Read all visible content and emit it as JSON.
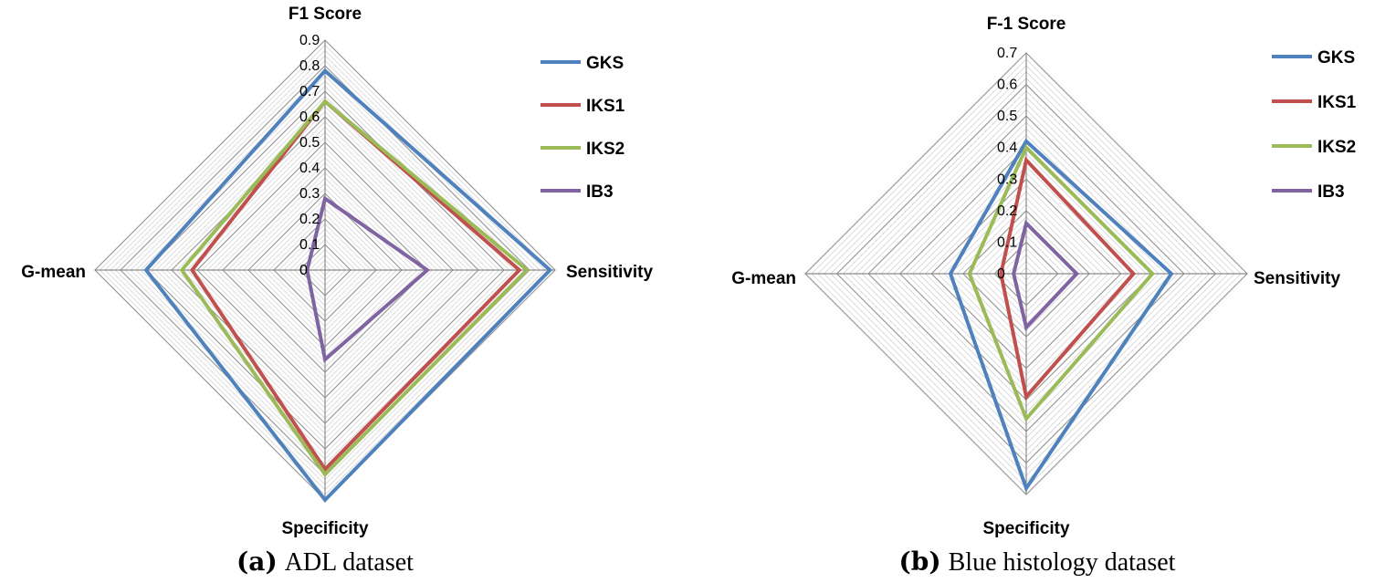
{
  "chart_data": [
    {
      "type": "radar",
      "caption_tag": "(a)",
      "caption_text": "ADL dataset",
      "axes": [
        "F1 Score",
        "Sensitivity",
        "Specificity",
        "G-mean"
      ],
      "rlim": [
        0,
        0.9
      ],
      "ticks": [
        "0",
        "0.1",
        "0.2",
        "0.3",
        "0.4",
        "0.5",
        "0.6",
        "0.7",
        "0.8",
        "0.9"
      ],
      "legend_position": "top-right",
      "series": [
        {
          "name": "GKS",
          "color": "#4F81BD",
          "values": [
            0.78,
            0.88,
            0.9,
            0.7
          ]
        },
        {
          "name": "IKS1",
          "color": "#C0504D",
          "values": [
            0.66,
            0.76,
            0.78,
            0.52
          ]
        },
        {
          "name": "IKS2",
          "color": "#9BBB59",
          "values": [
            0.66,
            0.79,
            0.8,
            0.56
          ]
        },
        {
          "name": "IB3",
          "color": "#8064A2",
          "values": [
            0.28,
            0.4,
            0.35,
            0.07
          ]
        }
      ]
    },
    {
      "type": "radar",
      "caption_tag": "(b)",
      "caption_text": "Blue histology dataset",
      "axes": [
        "F-1 Score",
        "Sensitivity",
        "Specificity",
        "G-mean"
      ],
      "rlim": [
        0,
        0.7
      ],
      "ticks": [
        "0",
        "0.1",
        "0.2",
        "0.3",
        "0.4",
        "0.5",
        "0.6",
        "0.7"
      ],
      "legend_position": "top-right",
      "series": [
        {
          "name": "GKS",
          "color": "#4F81BD",
          "values": [
            0.42,
            0.46,
            0.68,
            0.24
          ]
        },
        {
          "name": "IKS1",
          "color": "#C0504D",
          "values": [
            0.36,
            0.34,
            0.39,
            0.08
          ]
        },
        {
          "name": "IKS2",
          "color": "#9BBB59",
          "values": [
            0.4,
            0.4,
            0.46,
            0.18
          ]
        },
        {
          "name": "IB3",
          "color": "#8064A2",
          "values": [
            0.16,
            0.16,
            0.17,
            0.04
          ]
        }
      ]
    }
  ]
}
